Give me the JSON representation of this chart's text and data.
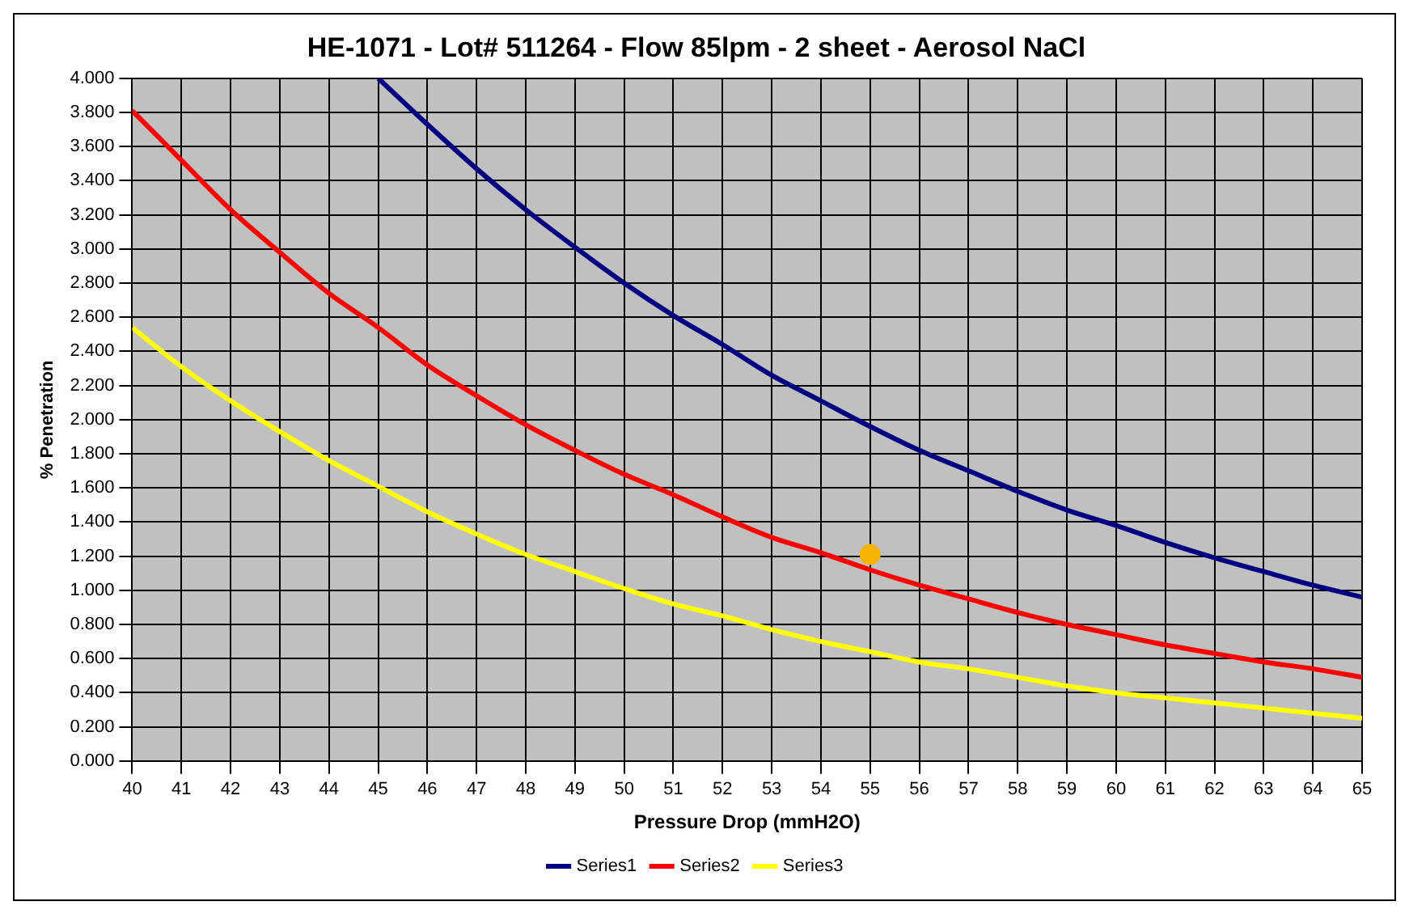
{
  "chart_data": {
    "type": "line",
    "title": "HE-1071 - Lot# 511264 - Flow 85lpm - 2 sheet - Aerosol NaCl",
    "xlabel": "Pressure Drop (mmH2O)",
    "ylabel": "% Penetration",
    "xlim": [
      40,
      65
    ],
    "xticks": [
      40,
      41,
      42,
      43,
      44,
      45,
      46,
      47,
      48,
      49,
      50,
      51,
      52,
      53,
      54,
      55,
      56,
      57,
      58,
      59,
      60,
      61,
      62,
      63,
      64,
      65
    ],
    "ylim": [
      0,
      4
    ],
    "yticks": [
      {
        "value": 0,
        "label": "0.000"
      },
      {
        "value": 0.2,
        "label": "0.200"
      },
      {
        "value": 0.4,
        "label": "0.400"
      },
      {
        "value": 0.6,
        "label": "0.600"
      },
      {
        "value": 0.8,
        "label": "0.800"
      },
      {
        "value": 1,
        "label": "1.000"
      },
      {
        "value": 1.2,
        "label": "1.200"
      },
      {
        "value": 1.4,
        "label": "1.400"
      },
      {
        "value": 1.6,
        "label": "1.600"
      },
      {
        "value": 1.8,
        "label": "1.800"
      },
      {
        "value": 2,
        "label": "2.000"
      },
      {
        "value": 2.2,
        "label": "2.200"
      },
      {
        "value": 2.4,
        "label": "2.400"
      },
      {
        "value": 2.6,
        "label": "2.600"
      },
      {
        "value": 2.8,
        "label": "2.800"
      },
      {
        "value": 3,
        "label": "3.000"
      },
      {
        "value": 3.2,
        "label": "3.200"
      },
      {
        "value": 3.4,
        "label": "3.400"
      },
      {
        "value": 3.6,
        "label": "3.600"
      },
      {
        "value": 3.8,
        "label": "3.800"
      },
      {
        "value": 4,
        "label": "4.000"
      }
    ],
    "grid": true,
    "legend": "bottom",
    "marker": "none",
    "line_style": "solid",
    "series": [
      {
        "name": "Series1",
        "color": "#000080",
        "x": [
          45,
          46,
          47,
          48,
          49,
          50,
          51,
          52,
          53,
          54,
          55,
          56,
          57,
          58,
          59,
          60,
          61,
          62,
          63,
          64,
          65
        ],
        "values": [
          4.0,
          3.73,
          3.47,
          3.23,
          3.01,
          2.8,
          2.61,
          2.44,
          2.26,
          2.11,
          1.96,
          1.82,
          1.7,
          1.58,
          1.47,
          1.38,
          1.28,
          1.19,
          1.11,
          1.03,
          0.96
        ]
      },
      {
        "name": "Series2",
        "color": "#ff0000",
        "x": [
          40,
          41,
          42,
          43,
          44,
          45,
          46,
          47,
          48,
          49,
          50,
          51,
          52,
          53,
          54,
          55,
          56,
          57,
          58,
          59,
          60,
          61,
          62,
          63,
          64,
          65
        ],
        "values": [
          3.81,
          3.52,
          3.23,
          2.98,
          2.74,
          2.54,
          2.32,
          2.14,
          1.97,
          1.82,
          1.68,
          1.56,
          1.43,
          1.31,
          1.22,
          1.12,
          1.03,
          0.95,
          0.87,
          0.8,
          0.74,
          0.68,
          0.63,
          0.58,
          0.54,
          0.49
        ]
      },
      {
        "name": "Series3",
        "color": "#ffff00",
        "x": [
          40,
          41,
          42,
          43,
          44,
          45,
          46,
          47,
          48,
          49,
          50,
          51,
          52,
          53,
          54,
          55,
          56,
          57,
          58,
          59,
          60,
          61,
          62,
          63,
          64,
          65
        ],
        "values": [
          2.54,
          2.31,
          2.11,
          1.93,
          1.76,
          1.61,
          1.46,
          1.33,
          1.21,
          1.11,
          1.01,
          0.92,
          0.85,
          0.77,
          0.7,
          0.64,
          0.58,
          0.54,
          0.49,
          0.44,
          0.4,
          0.37,
          0.34,
          0.31,
          0.28,
          0.25
        ]
      },
      {
        "type": "scatter",
        "color": "#f5b400",
        "marker": "circle",
        "x": [
          55
        ],
        "values": [
          1.21
        ]
      }
    ]
  }
}
